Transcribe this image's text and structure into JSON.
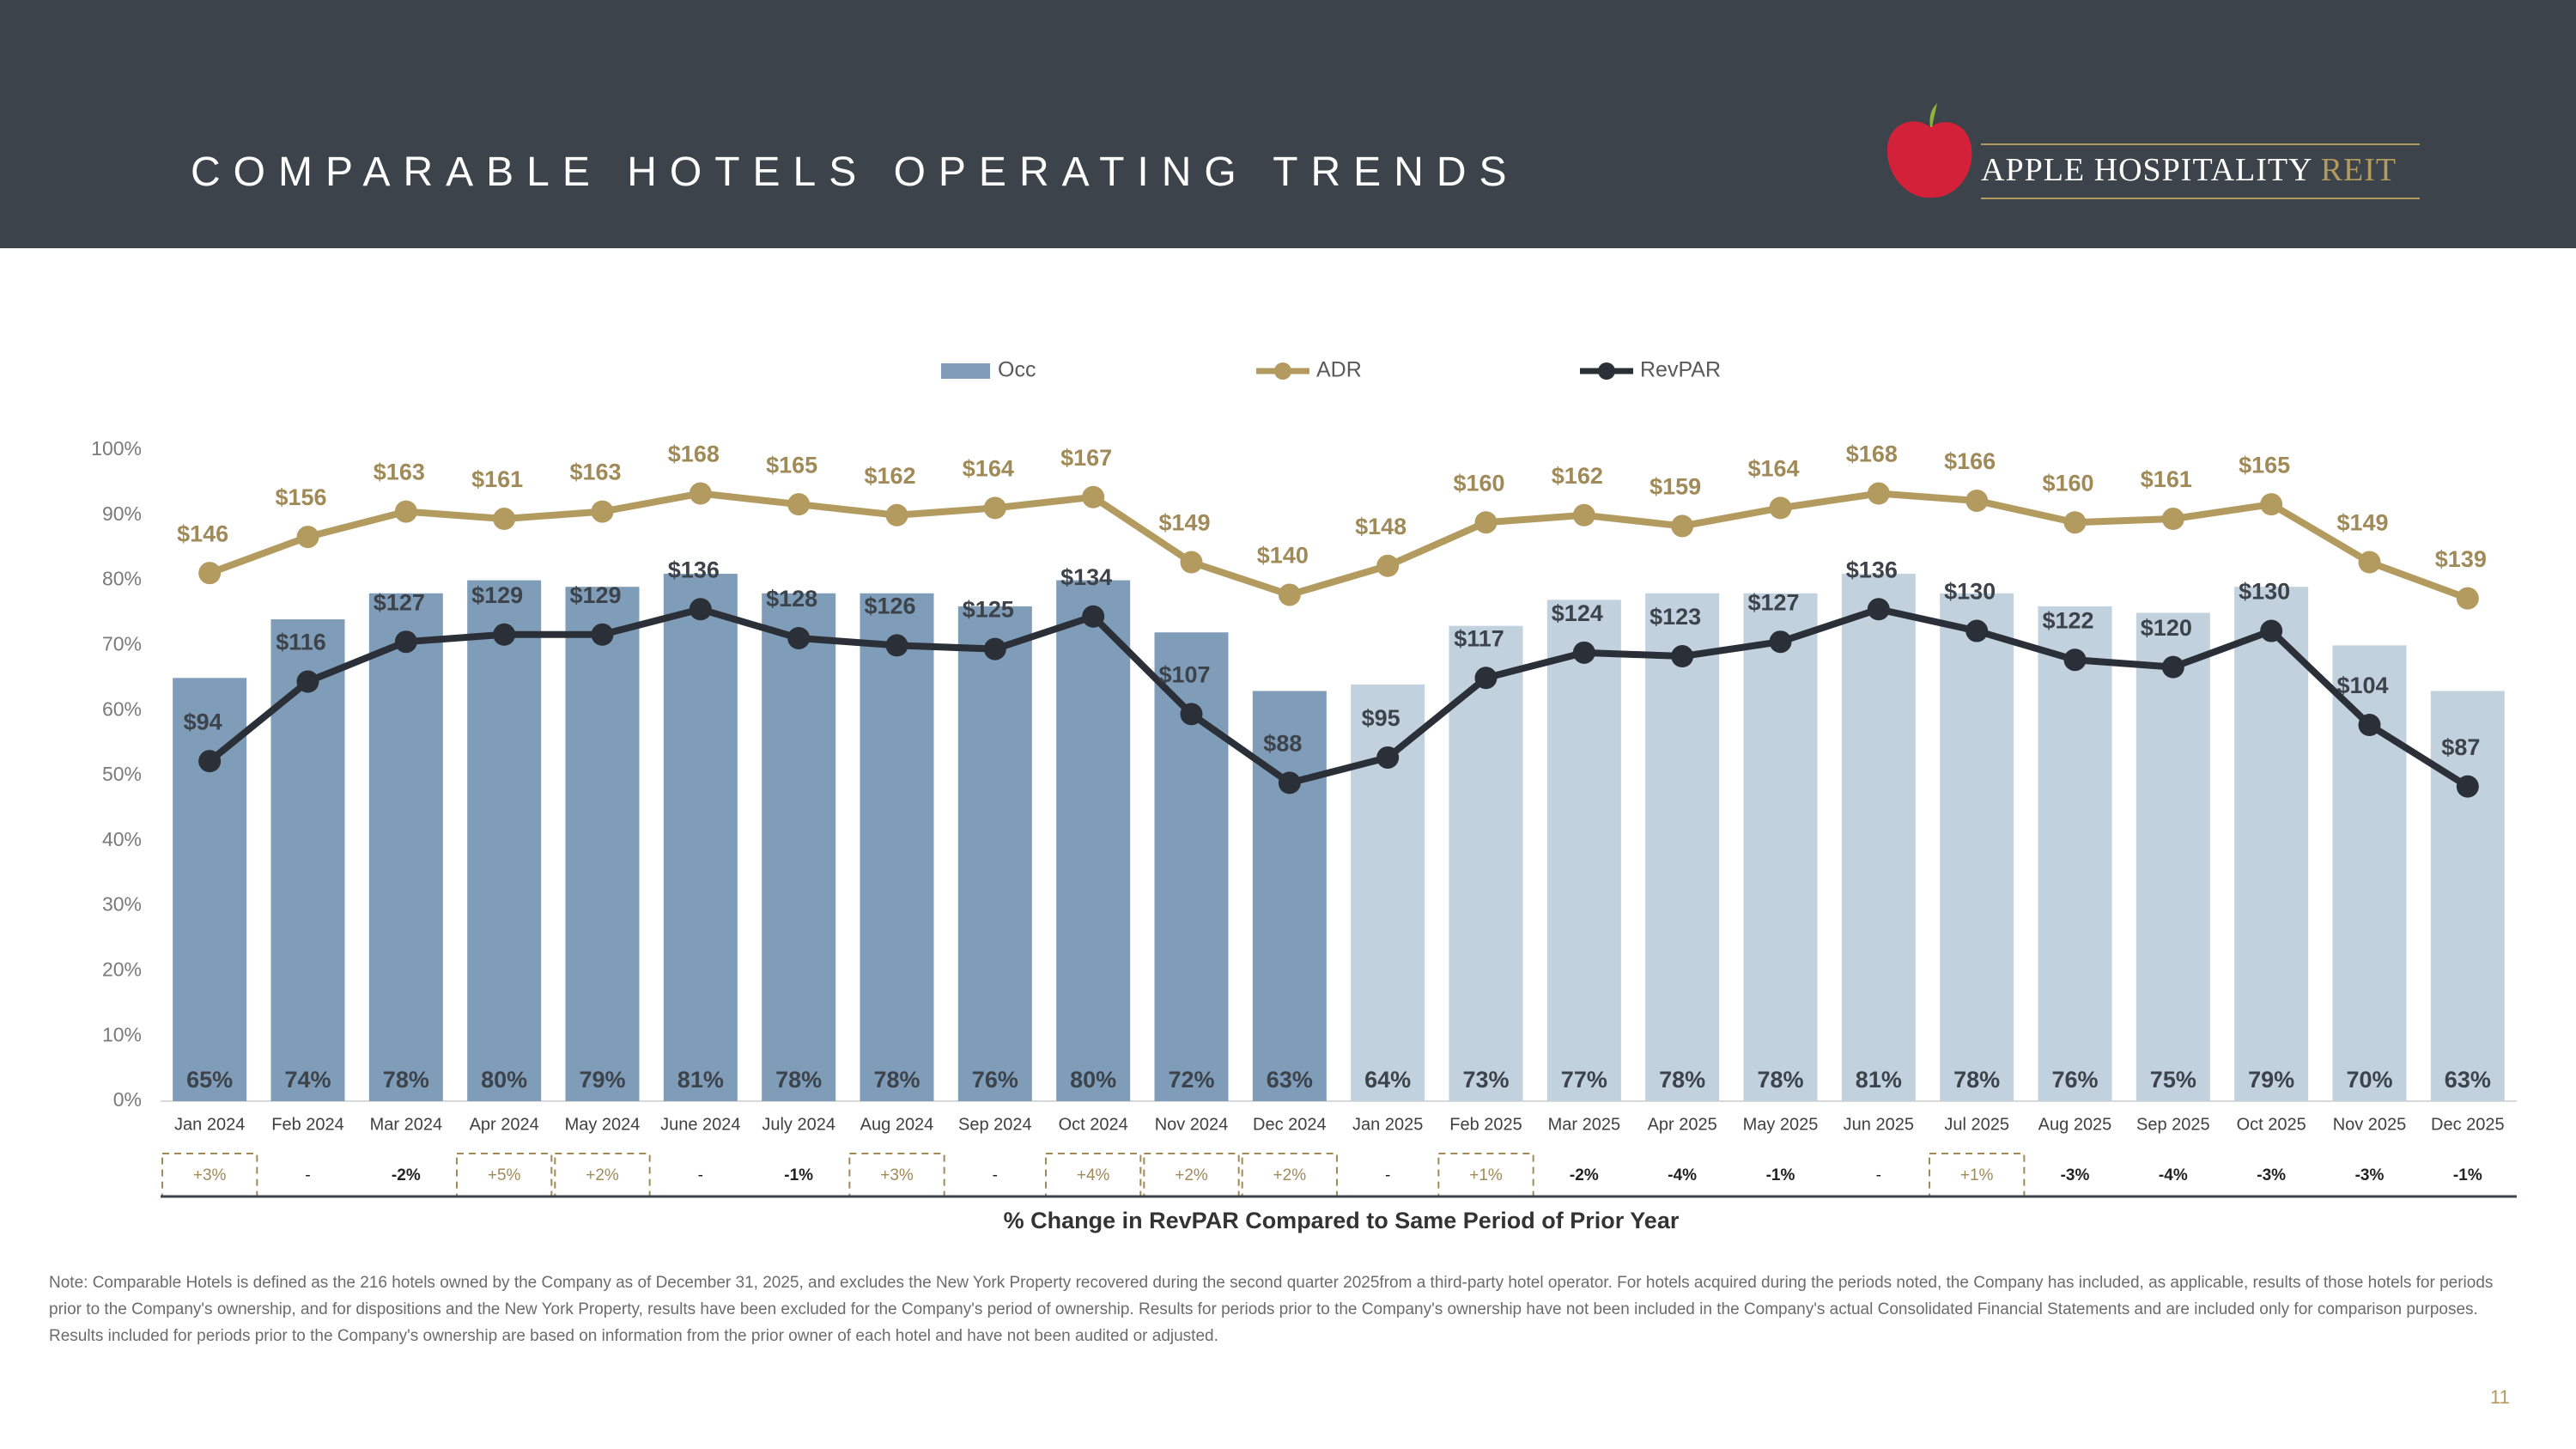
{
  "header": {
    "title": "COMPARABLE HOTELS OPERATING TRENDS",
    "logo_name": "APPLE HOSPITALITY",
    "logo_suffix": "REIT"
  },
  "chart_data": {
    "type": "combo",
    "categories": [
      "Jan 2024",
      "Feb 2024",
      "Mar 2024",
      "Apr 2024",
      "May 2024",
      "June 2024",
      "July 2024",
      "Aug 2024",
      "Sep 2024",
      "Oct 2024",
      "Nov 2024",
      "Dec 2024",
      "Jan 2025",
      "Feb 2025",
      "Mar 2025",
      "Apr 2025",
      "May 2025",
      "Jun 2025",
      "Jul 2025",
      "Aug 2025",
      "Sep 2025",
      "Oct 2025",
      "Nov 2025",
      "Dec 2025"
    ],
    "series": [
      {
        "name": "Occ",
        "type": "bar",
        "color": "#7f9db8",
        "colors": [
          "#7f9db8",
          "#7f9db8",
          "#7f9db8",
          "#7f9db8",
          "#7f9db8",
          "#7f9db8",
          "#7f9db8",
          "#7f9db8",
          "#7f9db8",
          "#7f9db8",
          "#7f9db8",
          "#7f9db8",
          "#c1d1de",
          "#c1d1de",
          "#c1d1de",
          "#c1d1de",
          "#c1d1de",
          "#c1d1de",
          "#c1d1de",
          "#c1d1de",
          "#c1d1de",
          "#c1d1de",
          "#c1d1de",
          "#c1d1de"
        ],
        "values": [
          65,
          74,
          78,
          80,
          79,
          81,
          78,
          78,
          76,
          80,
          72,
          63,
          64,
          73,
          77,
          78,
          78,
          81,
          78,
          76,
          75,
          79,
          70,
          63
        ],
        "value_labels": [
          "65%",
          "74%",
          "78%",
          "80%",
          "79%",
          "81%",
          "78%",
          "78%",
          "76%",
          "80%",
          "72%",
          "63%",
          "64%",
          "73%",
          "77%",
          "78%",
          "78%",
          "81%",
          "78%",
          "76%",
          "75%",
          "79%",
          "70%",
          "63%"
        ]
      },
      {
        "name": "ADR",
        "type": "line",
        "axis": "y2",
        "color": "#b39a5f",
        "label_color": "#a08a58",
        "values": [
          146,
          156,
          163,
          161,
          163,
          168,
          165,
          162,
          164,
          167,
          149,
          140,
          148,
          160,
          162,
          159,
          164,
          168,
          166,
          160,
          161,
          165,
          149,
          139
        ],
        "value_labels": [
          "$146",
          "$156",
          "$163",
          "$161",
          "$163",
          "$168",
          "$165",
          "$162",
          "$164",
          "$167",
          "$149",
          "$140",
          "$148",
          "$160",
          "$162",
          "$159",
          "$164",
          "$168",
          "$166",
          "$160",
          "$161",
          "$165",
          "$149",
          "$139"
        ]
      },
      {
        "name": "RevPAR",
        "type": "line",
        "axis": "y2",
        "color": "#2b3038",
        "label_color": "#3d434b",
        "values": [
          94,
          116,
          127,
          129,
          129,
          136,
          128,
          126,
          125,
          134,
          107,
          88,
          95,
          117,
          124,
          123,
          127,
          136,
          130,
          122,
          120,
          130,
          104,
          87
        ],
        "value_labels": [
          "$94",
          "$116",
          "$127",
          "$129",
          "$129",
          "$136",
          "$128",
          "$126",
          "$125",
          "$134",
          "$107",
          "$88",
          "$95",
          "$117",
          "$124",
          "$123",
          "$127",
          "$136",
          "$130",
          "$122",
          "$120",
          "$130",
          "$104",
          "$87"
        ]
      }
    ],
    "ylim": [
      0,
      100
    ],
    "yticks": [
      {
        "value": 0,
        "label": "0%"
      },
      {
        "value": 10,
        "label": "10%"
      },
      {
        "value": 20,
        "label": "20%"
      },
      {
        "value": 30,
        "label": "30%"
      },
      {
        "value": 40,
        "label": "40%"
      },
      {
        "value": 50,
        "label": "50%"
      },
      {
        "value": 60,
        "label": "60%"
      },
      {
        "value": 70,
        "label": "70%"
      },
      {
        "value": 80,
        "label": "80%"
      },
      {
        "value": 90,
        "label": "90%"
      },
      {
        "value": 100,
        "label": "100%"
      }
    ],
    "y2lim": [
      0,
      180
    ],
    "grid": false,
    "legend": "top",
    "revpar_change": {
      "title": "% Change in RevPAR Compared to Same Period of Prior Year",
      "values": [
        3,
        null,
        -2,
        5,
        2,
        null,
        -1,
        3,
        null,
        4,
        2,
        2,
        null,
        1,
        -2,
        -4,
        -1,
        null,
        1,
        -3,
        -4,
        -3,
        -3,
        -1
      ],
      "value_labels": [
        "+3%",
        "-",
        "-2%",
        "+5%",
        "+2%",
        "-",
        "-1%",
        "+3%",
        "-",
        "+4%",
        "+2%",
        "+2%",
        "-",
        "+1%",
        "-2%",
        "-4%",
        "-1%",
        "-",
        "+1%",
        "-3%",
        "-4%",
        "-3%",
        "-3%",
        "-1%"
      ]
    }
  },
  "note": "Note: Comparable Hotels is defined as the 216 hotels owned by the Company as of December 31, 2025, and excludes the New York Property recovered during the second quarter 2025from a third-party hotel operator. For hotels acquired during the periods noted, the Company has included, as applicable, results of those hotels for periods prior to the Company's ownership, and for dispositions and the New York Property, results have been excluded for the Company's period of ownership. Results for periods prior to the Company's ownership have not been included in the Company's actual Consolidated Financial Statements and are included only for comparison purposes. Results included for periods prior to the Company's ownership are based on information from the prior owner of each hotel and have not been audited or adjusted.",
  "page_number": "11"
}
